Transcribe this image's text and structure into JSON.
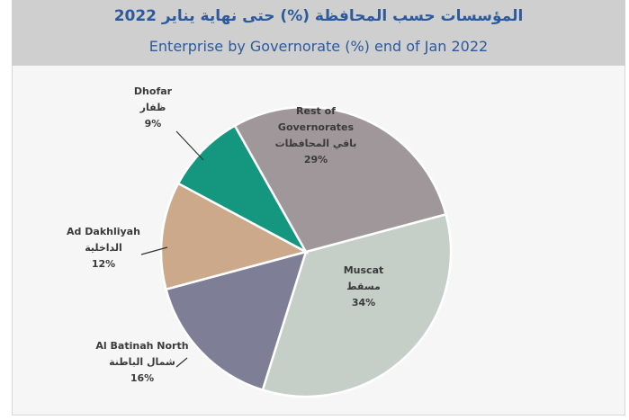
{
  "chart_data": {
    "type": "pie",
    "title_ar": "المؤسسات حسب المحافظة (%) حتى نهاية يناير 2022",
    "title": "Enterprise by Governorate (%) end of Jan 2022",
    "slices": [
      {
        "name": "Muscat",
        "name_ar": "مسقط",
        "value": 34,
        "value_label": "34%",
        "color": "#c5cec7"
      },
      {
        "name": "Al Batinah North",
        "name_ar": "شمال الباطنة",
        "value": 16,
        "value_label": "16%",
        "color": "#7e7f96"
      },
      {
        "name": "Ad Dakhliyah",
        "name_ar": "الداخلية",
        "value": 12,
        "value_label": "12%",
        "color": "#cba98a"
      },
      {
        "name": "Dhofar",
        "name_ar": "ظفار",
        "value": 9,
        "value_label": "9%",
        "color": "#14977e"
      },
      {
        "name_lines": [
          "Rest of",
          "Governorates"
        ],
        "name_ar": "باقي المحافظات",
        "value": 29,
        "value_label": "29%",
        "color": "#a0979a"
      }
    ]
  }
}
